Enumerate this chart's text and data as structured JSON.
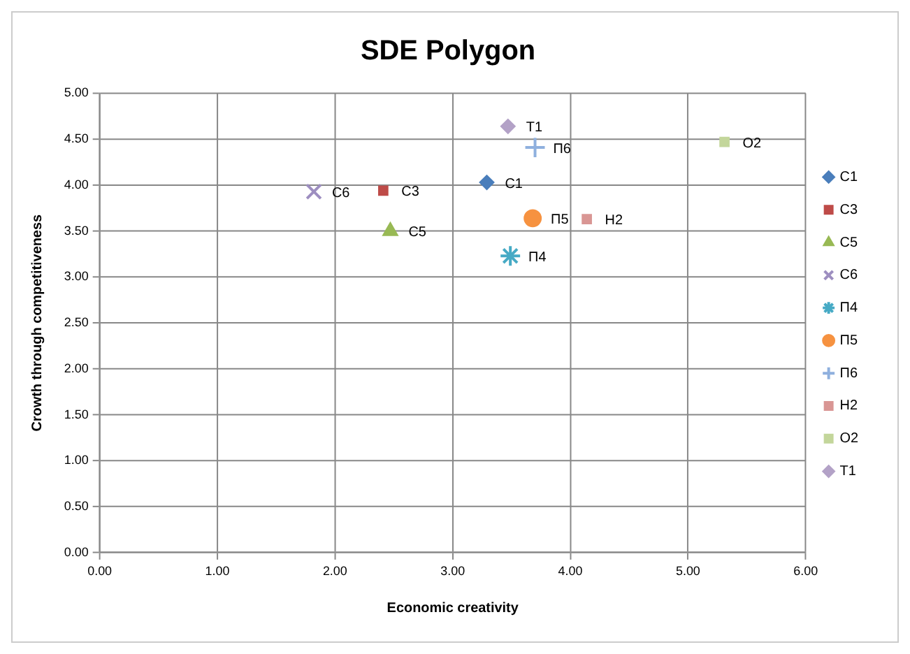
{
  "chart_data": {
    "type": "scatter",
    "title": "SDE Polygon",
    "xlabel": "Economic creativity",
    "ylabel": "Crowth through competitiveness",
    "xlim": [
      0,
      6
    ],
    "xticks": [
      {
        "value": 0,
        "label": "0.00"
      },
      {
        "value": 1,
        "label": "1.00"
      },
      {
        "value": 2,
        "label": "2.00"
      },
      {
        "value": 3,
        "label": "3.00"
      },
      {
        "value": 4,
        "label": "4.00"
      },
      {
        "value": 5,
        "label": "5.00"
      },
      {
        "value": 6,
        "label": "6.00"
      }
    ],
    "ylim": [
      0,
      5
    ],
    "yticks": [
      {
        "value": 0,
        "label": "0.00"
      },
      {
        "value": 0.5,
        "label": "0.50"
      },
      {
        "value": 1,
        "label": "1.00"
      },
      {
        "value": 1.5,
        "label": "1.50"
      },
      {
        "value": 2,
        "label": "2.00"
      },
      {
        "value": 2.5,
        "label": "2.50"
      },
      {
        "value": 3,
        "label": "3.00"
      },
      {
        "value": 3.5,
        "label": "3.50"
      },
      {
        "value": 4,
        "label": "4.00"
      },
      {
        "value": 4.5,
        "label": "4.50"
      },
      {
        "value": 5,
        "label": "5.00"
      }
    ],
    "grid": true,
    "legend": "right",
    "series": [
      {
        "name": "С1",
        "color": "#4a7ebb",
        "marker": "diamond",
        "x": [
          3.29
        ],
        "values": [
          4.03
        ]
      },
      {
        "name": "С3",
        "color": "#be4b48",
        "marker": "square",
        "x": [
          2.41
        ],
        "values": [
          3.94
        ]
      },
      {
        "name": "С5",
        "color": "#98b954",
        "marker": "triangle",
        "x": [
          2.47
        ],
        "values": [
          3.5
        ]
      },
      {
        "name": "С6",
        "color": "#9d8ec0",
        "marker": "x",
        "x": [
          1.82
        ],
        "values": [
          3.93
        ]
      },
      {
        "name": "П4",
        "color": "#46aac5",
        "marker": "cross",
        "x": [
          3.49
        ],
        "values": [
          3.23
        ]
      },
      {
        "name": "П5",
        "color": "#f69240",
        "marker": "circle",
        "x": [
          3.68
        ],
        "values": [
          3.64
        ]
      },
      {
        "name": "П6",
        "color": "#8fb0de",
        "marker": "plus",
        "x": [
          3.7
        ],
        "values": [
          4.41
        ]
      },
      {
        "name": "Н2",
        "color": "#d99694",
        "marker": "square",
        "x": [
          4.14
        ],
        "values": [
          3.63
        ]
      },
      {
        "name": "О2",
        "color": "#c3d69b",
        "marker": "square",
        "x": [
          5.31
        ],
        "values": [
          4.47
        ]
      },
      {
        "name": "Т1",
        "color": "#b3a2c7",
        "marker": "diamond",
        "x": [
          3.47
        ],
        "values": [
          4.64
        ]
      }
    ]
  }
}
